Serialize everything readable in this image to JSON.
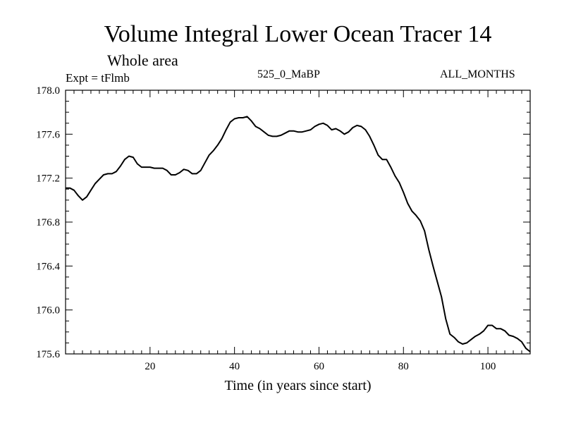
{
  "header": {
    "title": "Volume Integral Lower Ocean Tracer 14",
    "subtitle": "Whole area",
    "expt": "Expt = tFlmb",
    "run": "525_0_MaBP",
    "months": "ALL_MONTHS"
  },
  "chart_data": {
    "type": "line",
    "title": "Volume Integral Lower Ocean Tracer 14",
    "xlabel": "Time (in years since start)",
    "ylabel": "",
    "xlim": [
      0,
      110
    ],
    "ylim": [
      175.6,
      178.0
    ],
    "xticks_major": [
      20,
      40,
      60,
      80,
      100
    ],
    "xticks_minor_step": 2,
    "yticks_major": [
      175.6,
      176.0,
      176.4,
      176.8,
      177.2,
      177.6,
      178.0
    ],
    "yticks_minor_step": 0.1,
    "ytick_labels": [
      "175.6",
      "176.0",
      "176.4",
      "176.8",
      "177.2",
      "177.6",
      "178.0"
    ],
    "grid": false,
    "line_color": "#000000",
    "series": [
      {
        "name": "Tracer 14",
        "x": [
          0,
          1,
          2,
          3,
          4,
          5,
          6,
          7,
          8,
          9,
          10,
          11,
          12,
          13,
          14,
          15,
          16,
          17,
          18,
          19,
          20,
          21,
          22,
          23,
          24,
          25,
          26,
          27,
          28,
          29,
          30,
          31,
          32,
          33,
          34,
          35,
          36,
          37,
          38,
          39,
          40,
          41,
          42,
          43,
          44,
          45,
          46,
          47,
          48,
          49,
          50,
          51,
          52,
          53,
          54,
          55,
          56,
          57,
          58,
          59,
          60,
          61,
          62,
          63,
          64,
          65,
          66,
          67,
          68,
          69,
          70,
          71,
          72,
          73,
          74,
          75,
          76,
          77,
          78,
          79,
          80,
          81,
          82,
          83,
          84,
          85,
          86,
          87,
          88,
          89,
          90,
          91,
          92,
          93,
          94,
          95,
          96,
          97,
          98,
          99,
          100,
          101,
          102,
          103,
          104,
          105,
          106,
          107,
          108,
          109,
          110
        ],
        "values": [
          177.11,
          177.11,
          177.09,
          177.04,
          177.0,
          177.03,
          177.09,
          177.15,
          177.19,
          177.23,
          177.24,
          177.24,
          177.26,
          177.31,
          177.37,
          177.4,
          177.39,
          177.33,
          177.3,
          177.3,
          177.3,
          177.29,
          177.29,
          177.29,
          177.27,
          177.23,
          177.23,
          177.25,
          177.28,
          177.27,
          177.24,
          177.24,
          177.27,
          177.34,
          177.41,
          177.45,
          177.5,
          177.56,
          177.64,
          177.71,
          177.74,
          177.75,
          177.75,
          177.76,
          177.72,
          177.67,
          177.65,
          177.62,
          177.59,
          177.58,
          177.58,
          177.59,
          177.61,
          177.63,
          177.63,
          177.62,
          177.62,
          177.63,
          177.64,
          177.67,
          177.69,
          177.7,
          177.68,
          177.64,
          177.65,
          177.63,
          177.6,
          177.62,
          177.66,
          177.68,
          177.67,
          177.64,
          177.58,
          177.5,
          177.41,
          177.37,
          177.37,
          177.3,
          177.22,
          177.16,
          177.07,
          176.97,
          176.9,
          176.86,
          176.81,
          176.72,
          176.55,
          176.4,
          176.26,
          176.12,
          175.92,
          175.78,
          175.75,
          175.71,
          175.69,
          175.7,
          175.73,
          175.76,
          175.78,
          175.81,
          175.86,
          175.86,
          175.83,
          175.83,
          175.81,
          175.77,
          175.76,
          175.74,
          175.71,
          175.65,
          175.62
        ]
      }
    ]
  }
}
